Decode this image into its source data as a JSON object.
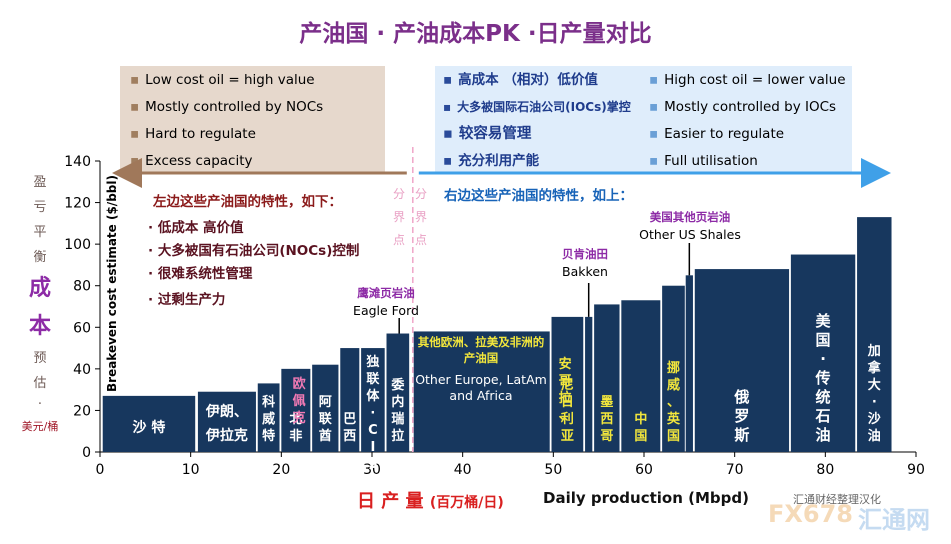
{
  "title": "产油国 · 产油成本PK ·日产量对比",
  "left_box": {
    "items": [
      "Low cost oil = high value",
      "Mostly controlled by NOCs",
      "Hard to regulate",
      "Excess capacity"
    ]
  },
  "right_box": {
    "cn_items": [
      "高成本 （相对）低价值",
      "大多被国际石油公司(IOCs)掌控",
      "较容易管理",
      "充分利用产能"
    ],
    "en_items": [
      "High cost oil = lower value",
      "Mostly controlled by IOCs",
      "Easier to regulate",
      "Full utilisation"
    ]
  },
  "side_label": {
    "chars": [
      "盈",
      "亏",
      "平",
      "衡"
    ],
    "big": [
      "成",
      "本"
    ],
    "small": [
      "预",
      "估",
      "·"
    ],
    "unit": "美元/桶"
  },
  "left_notes": {
    "heading": "左边这些产油国的特性，如下：",
    "items": [
      "· 低成本  高价值",
      "· 大多被国有石油公司(NOCs)控制",
      "· 很难系统性管理",
      "· 过剩生产力"
    ]
  },
  "right_heading": "右边这些产油国的特性，如上：",
  "divider_label": [
    "分",
    "界",
    "点"
  ],
  "annotations": {
    "eagle_ford_cn": "鹰滩页岩油",
    "eagle_ford_en": "Eagle Ford",
    "bakken_cn": "贝肯油田",
    "bakken_en": "Bakken",
    "us_shales_cn": "美国其他页岩油",
    "us_shales_en": "Other US Shales",
    "other_cn": "其他欧洲、拉美及非洲的产油国",
    "other_en": "Other Europe, LatAm and Africa"
  },
  "xlabel_cn": "日 产 量",
  "xlabel_cn_unit": "(百万桶/日)",
  "xlabel_en": "Daily production  (Mbpd)",
  "credit": "汇通财经整理汉化",
  "watermark": "FX678",
  "watermark2": "汇通网",
  "colors": {
    "bar": "#17375e",
    "left_arrow": "#a0785a",
    "right_arrow": "#3fa0e8",
    "divider": "#f0a6c8"
  },
  "chart_data": {
    "type": "bar",
    "ylabel": "Breakeven cost estimate ($/bbl)",
    "xlabel": "Daily production  (Mbpd)",
    "xlim": [
      0,
      90
    ],
    "ylim": [
      0,
      140
    ],
    "x_ticks": [
      0,
      10,
      20,
      30,
      40,
      50,
      60,
      70,
      80,
      90
    ],
    "y_ticks": [
      0,
      20,
      40,
      60,
      80,
      100,
      120,
      140
    ],
    "divider_x": 34.5,
    "bars": [
      {
        "x0": 0.3,
        "x1": 10.5,
        "value": 27,
        "label": "沙 特",
        "color": "#ffffff",
        "vertical": false
      },
      {
        "x0": 10.8,
        "x1": 17.2,
        "value": 29,
        "label": "伊朗、伊拉克",
        "color": "#ffffff",
        "vertical": false
      },
      {
        "x0": 17.4,
        "x1": 19.8,
        "value": 33,
        "label": "科威特",
        "color": "#ffffff",
        "vertical": true
      },
      {
        "x0": 20.0,
        "x1": 23.2,
        "value": 40,
        "label": "北非",
        "color": "#ffffff",
        "vertical": true
      },
      {
        "x0": 23.4,
        "x1": 26.3,
        "value": 42,
        "label": "阿联酋",
        "color": "#ffffff",
        "vertical": true
      },
      {
        "x0": 26.5,
        "x1": 28.6,
        "value": 50,
        "label": "巴西",
        "color": "#ffffff",
        "vertical": true
      },
      {
        "x0": 28.8,
        "x1": 31.4,
        "value": 50,
        "label": "独联体·CIS",
        "color": "#ffffff",
        "vertical": true
      },
      {
        "x0": 31.6,
        "x1": 34.1,
        "value": 57,
        "label": "委内瑞拉",
        "color": "#ffffff",
        "vertical": true
      },
      {
        "x0": 34.6,
        "x1": 49.6,
        "value": 58,
        "label": "",
        "color": "#ffffff",
        "vertical": false
      },
      {
        "x0": 49.8,
        "x1": 53.3,
        "value": 65,
        "label": "尼日利亚",
        "color": "#f2e63c",
        "vertical": true
      },
      {
        "x0": 53.5,
        "x1": 54.3,
        "value": 65,
        "label": "",
        "color": "#ffffff",
        "vertical": false
      },
      {
        "x0": 54.5,
        "x1": 57.3,
        "value": 71,
        "label": "墨西哥",
        "color": "#f2e63c",
        "vertical": true
      },
      {
        "x0": 57.5,
        "x1": 61.8,
        "value": 73,
        "label": "中国",
        "color": "#f2e63c",
        "vertical": true
      },
      {
        "x0": 62.0,
        "x1": 64.5,
        "value": 80,
        "label": "挪威、英国",
        "color": "#f2e63c",
        "vertical": true
      },
      {
        "x0": 64.6,
        "x1": 65.4,
        "value": 85,
        "label": "",
        "color": "#ffffff",
        "vertical": false
      },
      {
        "x0": 65.6,
        "x1": 76.0,
        "value": 88,
        "label": "俄罗斯",
        "color": "#ffffff",
        "vertical": true
      },
      {
        "x0": 76.2,
        "x1": 83.3,
        "value": 95,
        "label": "美国·传统石油",
        "color": "#ffffff",
        "vertical": true
      },
      {
        "x0": 83.5,
        "x1": 87.3,
        "value": 113,
        "label": "加拿大·沙油",
        "color": "#ffffff",
        "vertical": true
      }
    ],
    "extra_labels": [
      {
        "text": "欧佩克",
        "x": 21.3,
        "color": "#f27ab5"
      },
      {
        "text": "安哥拉、",
        "x": 51.3,
        "color": "#f2e63c"
      }
    ]
  }
}
